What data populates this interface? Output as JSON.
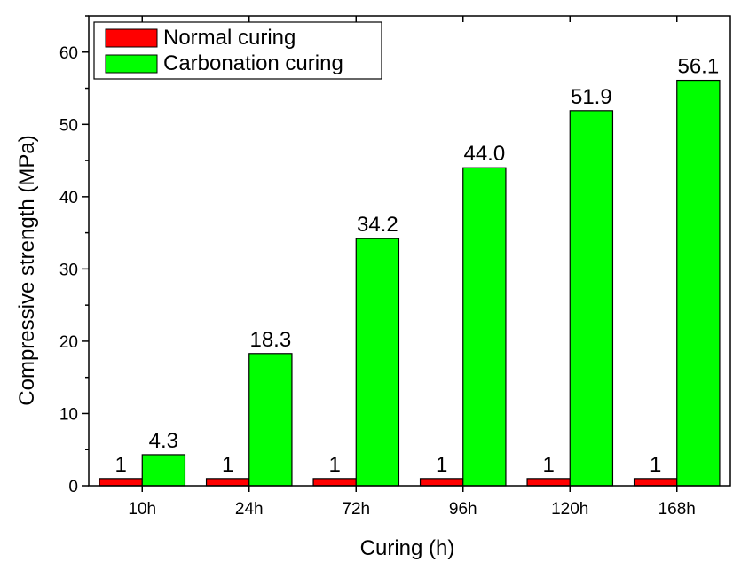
{
  "chart_data": {
    "type": "bar",
    "categories": [
      "10h",
      "24h",
      "72h",
      "96h",
      "120h",
      "168h"
    ],
    "series": [
      {
        "name": "Normal curing",
        "color": "#ff0000",
        "values": [
          1,
          1,
          1,
          1,
          1,
          1
        ],
        "labels": [
          "1",
          "1",
          "1",
          "1",
          "1",
          "1"
        ]
      },
      {
        "name": "Carbonation curing",
        "color": "#00ff00",
        "values": [
          4.3,
          18.3,
          34.2,
          44.0,
          51.9,
          56.1
        ],
        "labels": [
          "4.3",
          "18.3",
          "34.2",
          "44.0",
          "51.9",
          "56.1"
        ]
      }
    ],
    "xlabel": "Curing (h)",
    "ylabel": "Compressive strength (MPa)",
    "ylim": [
      0,
      65
    ],
    "yticks": [
      0,
      10,
      20,
      30,
      40,
      50,
      60
    ],
    "grid": false,
    "legend_position": "top-left"
  }
}
